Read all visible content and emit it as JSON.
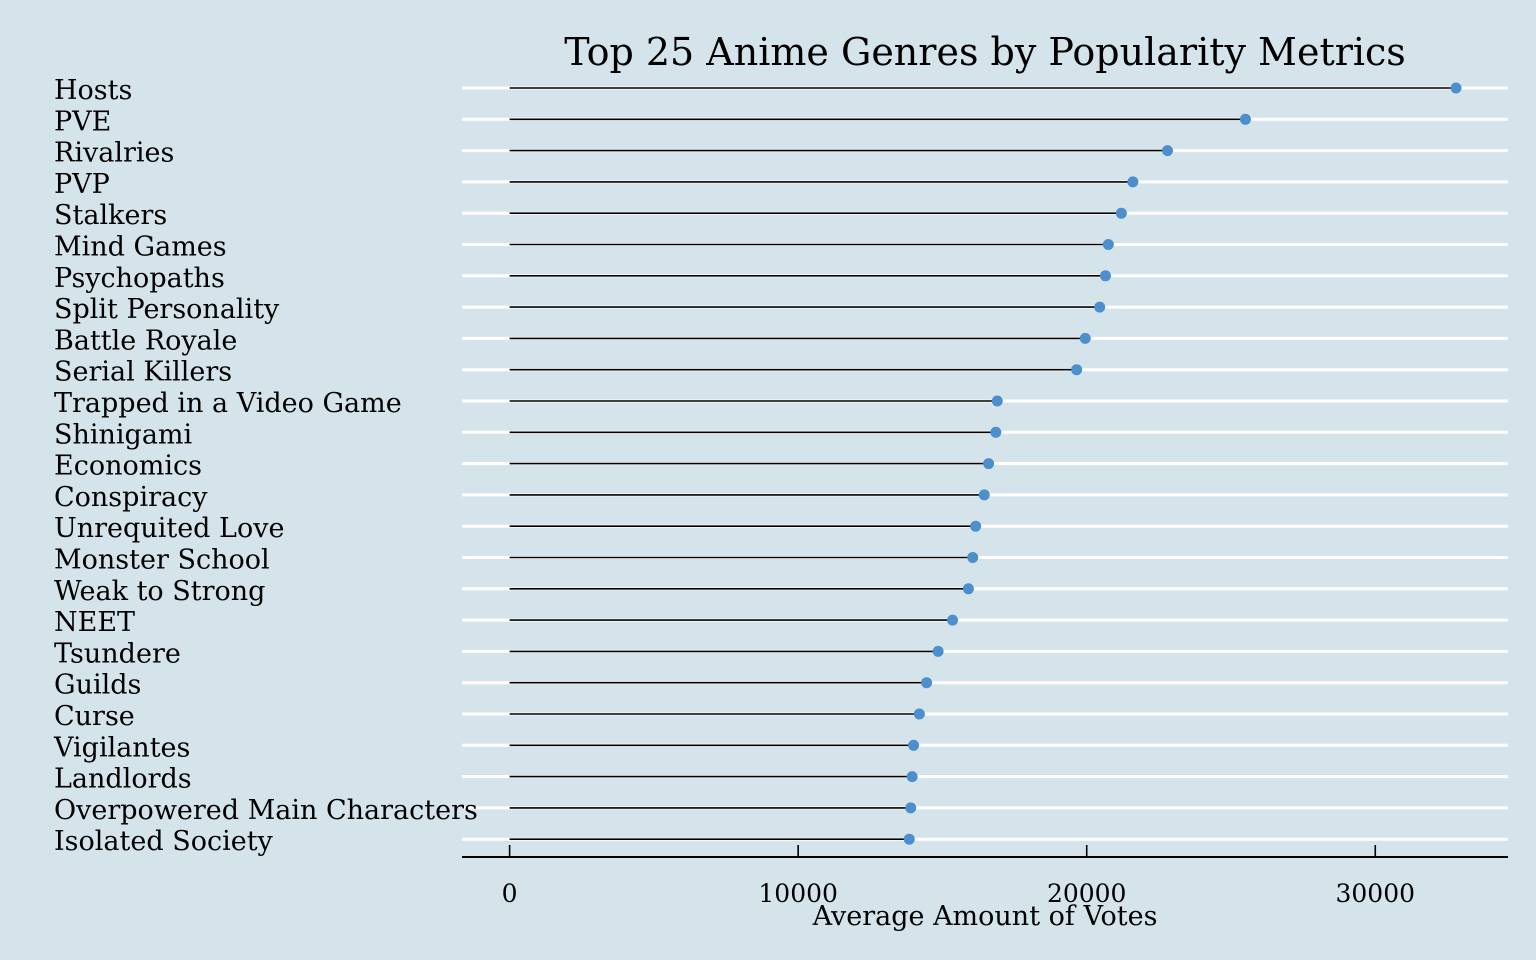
{
  "chart_data": {
    "type": "lollipop",
    "title": "Top 25 Anime Genres by Popularity Metrics",
    "xlabel": "Average Amount of Votes",
    "ylabel": "",
    "xlim": [
      -1650,
      34600
    ],
    "x_ticks": [
      0,
      10000,
      20000,
      30000
    ],
    "x_tick_labels": [
      "0",
      "10000",
      "20000",
      "30000"
    ],
    "grid": "horizontal-white",
    "point_color": "#4d8fcc",
    "stem_color": "#000000",
    "background_color": "#d5e4eb",
    "gridline_color": "#ffffff",
    "categories": [
      "Hosts",
      "PVE",
      "Rivalries",
      "PVP",
      "Stalkers",
      "Mind Games",
      "Psychopaths",
      "Split Personality",
      "Battle Royale",
      "Serial Killers",
      "Trapped in a Video Game",
      "Shinigami",
      "Economics",
      "Conspiracy",
      "Unrequited Love",
      "Monster School",
      "Weak to Strong",
      "NEET",
      "Tsundere",
      "Guilds",
      "Curse",
      "Vigilantes",
      "Landlords",
      "Overpowered Main Characters",
      "Isolated Society"
    ],
    "values": [
      32800,
      25500,
      22800,
      21600,
      21200,
      20750,
      20650,
      20450,
      19950,
      19650,
      16900,
      16850,
      16600,
      16450,
      16150,
      16050,
      15900,
      15350,
      14850,
      14450,
      14200,
      14000,
      13950,
      13900,
      13850
    ]
  }
}
